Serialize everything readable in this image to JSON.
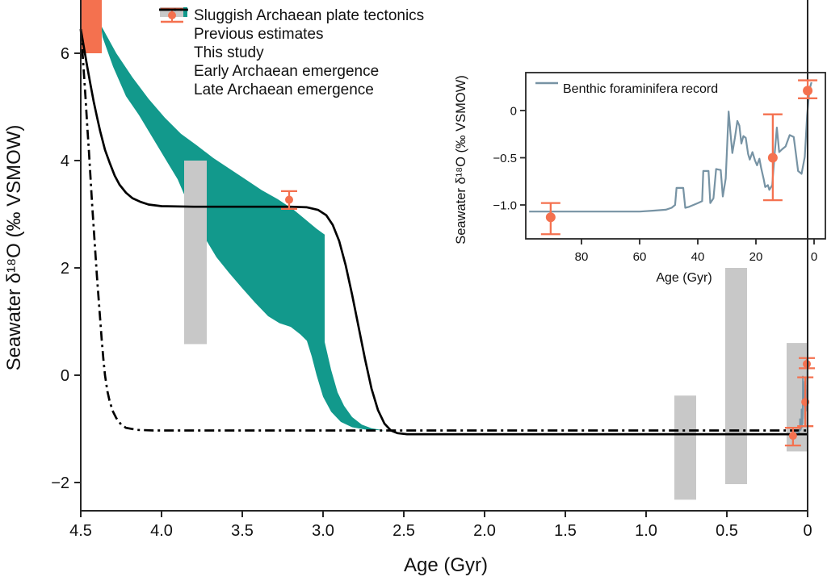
{
  "colors": {
    "teal": "#12998c",
    "orange": "#f4714f",
    "gray": "#c8c8c8",
    "blue_gray": "#7793a4",
    "line_black": "#000000",
    "axis": "#262626"
  },
  "chart_data": [
    {
      "type": "line",
      "title": "",
      "xlabel": "Age (Gyr)",
      "ylabel": "Seawater δ¹⁸O (‰ VSMOW)",
      "xlim": [
        4.5,
        0
      ],
      "ylim": [
        -2.53,
        7.0
      ],
      "grid": false,
      "legend_position": "upper left",
      "x_ticks": {
        "values": [
          4.5,
          4.0,
          3.5,
          3.0,
          2.5,
          2.0,
          1.5,
          1.0,
          0.5,
          0
        ],
        "labels": [
          "4.5",
          "4.0",
          "3.5",
          "3.0",
          "2.5",
          "2.0",
          "1.5",
          "1.0",
          "0.5",
          "0"
        ]
      },
      "y_ticks": {
        "values": [
          6,
          4,
          2,
          0,
          -2
        ],
        "labels": [
          "6",
          "4",
          "2",
          "0",
          "−2"
        ]
      },
      "legend": {
        "items": [
          {
            "label": "Sluggish Archaean plate tectonics",
            "marker": "filled-band"
          },
          {
            "label": "Previous estimates",
            "marker": "filled-box"
          },
          {
            "label": "This study",
            "marker": "errorbar-point"
          },
          {
            "label": "Early Archaean emergence",
            "marker": "dashdot-line"
          },
          {
            "label": "Late Archaean emergence",
            "marker": "solid-line"
          }
        ]
      },
      "orange_box": {
        "age": [
          4.37,
          4.5
        ],
        "d18o": [
          6.0,
          7.0
        ]
      },
      "previous_estimates": [
        {
          "age": [
            3.72,
            3.86
          ],
          "d18o": [
            0.58,
            4.0
          ]
        },
        {
          "age": [
            0.69,
            0.825
          ],
          "d18o": [
            -2.32,
            -0.38
          ]
        },
        {
          "age": [
            0.375,
            0.51
          ],
          "d18o": [
            -2.03,
            2.0
          ]
        },
        {
          "age": [
            0.005,
            0.13
          ],
          "d18o": [
            -1.42,
            0.6
          ]
        }
      ],
      "this_study": [
        {
          "age": 3.21,
          "d18o": 3.27,
          "lo": 3.1,
          "hi": 3.43
        },
        {
          "age": 0.0906,
          "d18o": -1.13,
          "lo": -1.31,
          "hi": -0.98
        },
        {
          "age": 0.0142,
          "d18o": -0.5,
          "lo": -0.95,
          "hi": -0.04
        },
        {
          "age": 0.005,
          "d18o": 0.21,
          "lo": 0.13,
          "hi": 0.32
        }
      ],
      "series": {
        "band_upper": [
          [
            4.375,
            6.52
          ],
          [
            4.28,
            6.0
          ],
          [
            4.18,
            5.55
          ],
          [
            4.08,
            5.15
          ],
          [
            3.98,
            4.8
          ],
          [
            3.88,
            4.5
          ],
          [
            3.78,
            4.28
          ],
          [
            3.68,
            4.05
          ],
          [
            3.58,
            3.85
          ],
          [
            3.48,
            3.65
          ],
          [
            3.38,
            3.45
          ],
          [
            3.28,
            3.28
          ],
          [
            3.18,
            3.08
          ],
          [
            3.1,
            2.88
          ],
          [
            3.04,
            2.73
          ],
          [
            2.99,
            2.62
          ],
          [
            2.99,
            0.62
          ],
          [
            2.95,
            0.1
          ],
          [
            2.91,
            -0.32
          ],
          [
            2.87,
            -0.57
          ],
          [
            2.82,
            -0.78
          ],
          [
            2.76,
            -0.92
          ],
          [
            2.7,
            -0.99
          ],
          [
            2.62,
            -1.03
          ]
        ],
        "band_lower": [
          [
            4.365,
            6.3
          ],
          [
            4.3,
            5.75
          ],
          [
            4.22,
            5.2
          ],
          [
            4.14,
            4.85
          ],
          [
            4.06,
            4.45
          ],
          [
            3.98,
            4.05
          ],
          [
            3.9,
            3.65
          ],
          [
            3.85,
            3.3
          ],
          [
            3.8,
            3.05
          ],
          [
            3.73,
            2.55
          ],
          [
            3.66,
            2.2
          ],
          [
            3.58,
            1.9
          ],
          [
            3.5,
            1.62
          ],
          [
            3.42,
            1.35
          ],
          [
            3.34,
            1.1
          ],
          [
            3.27,
            0.97
          ],
          [
            3.2,
            0.9
          ],
          [
            3.14,
            0.76
          ],
          [
            3.1,
            0.64
          ],
          [
            3.07,
            0.35
          ],
          [
            3.04,
            0.0
          ],
          [
            3.0,
            -0.4
          ],
          [
            2.95,
            -0.68
          ],
          [
            2.89,
            -0.87
          ],
          [
            2.82,
            -0.97
          ],
          [
            2.74,
            -1.01
          ],
          [
            2.62,
            -1.03
          ]
        ],
        "early_emergence": [
          [
            4.5,
            6.45
          ],
          [
            4.49,
            6.05
          ],
          [
            4.48,
            5.6
          ],
          [
            4.47,
            5.15
          ],
          [
            4.46,
            4.65
          ],
          [
            4.45,
            4.2
          ],
          [
            4.44,
            3.7
          ],
          [
            4.43,
            3.2
          ],
          [
            4.42,
            2.75
          ],
          [
            4.41,
            2.3
          ],
          [
            4.4,
            1.85
          ],
          [
            4.39,
            1.45
          ],
          [
            4.38,
            1.05
          ],
          [
            4.37,
            0.65
          ],
          [
            4.36,
            0.3
          ],
          [
            4.35,
            0.0
          ],
          [
            4.335,
            -0.3
          ],
          [
            4.32,
            -0.5
          ],
          [
            4.3,
            -0.68
          ],
          [
            4.28,
            -0.8
          ],
          [
            4.25,
            -0.92
          ],
          [
            4.22,
            -0.98
          ],
          [
            4.15,
            -1.02
          ],
          [
            4.05,
            -1.03
          ],
          [
            3.9,
            -1.03
          ],
          [
            3.5,
            -1.03
          ],
          [
            3.0,
            -1.03
          ],
          [
            2.5,
            -1.03
          ],
          [
            2.0,
            -1.03
          ],
          [
            1.5,
            -1.03
          ],
          [
            1.0,
            -1.03
          ],
          [
            0.5,
            -1.03
          ],
          [
            0.0,
            -1.03
          ]
        ],
        "late_emergence": [
          [
            4.5,
            6.45
          ],
          [
            4.48,
            6.1
          ],
          [
            4.46,
            5.75
          ],
          [
            4.44,
            5.42
          ],
          [
            4.42,
            5.1
          ],
          [
            4.4,
            4.82
          ],
          [
            4.38,
            4.55
          ],
          [
            4.35,
            4.2
          ],
          [
            4.32,
            3.95
          ],
          [
            4.29,
            3.72
          ],
          [
            4.26,
            3.55
          ],
          [
            4.22,
            3.4
          ],
          [
            4.18,
            3.3
          ],
          [
            4.13,
            3.23
          ],
          [
            4.08,
            3.18
          ],
          [
            4.0,
            3.15
          ],
          [
            3.8,
            3.14
          ],
          [
            3.6,
            3.14
          ],
          [
            3.4,
            3.14
          ],
          [
            3.2,
            3.14
          ],
          [
            3.1,
            3.13
          ],
          [
            3.03,
            3.08
          ],
          [
            2.98,
            2.98
          ],
          [
            2.94,
            2.8
          ],
          [
            2.9,
            2.5
          ],
          [
            2.86,
            2.05
          ],
          [
            2.82,
            1.5
          ],
          [
            2.78,
            0.9
          ],
          [
            2.74,
            0.3
          ],
          [
            2.7,
            -0.25
          ],
          [
            2.66,
            -0.65
          ],
          [
            2.62,
            -0.9
          ],
          [
            2.58,
            -1.03
          ],
          [
            2.54,
            -1.08
          ],
          [
            2.48,
            -1.1
          ],
          [
            2.3,
            -1.1
          ],
          [
            2.0,
            -1.1
          ],
          [
            1.5,
            -1.1
          ],
          [
            1.0,
            -1.1
          ],
          [
            0.5,
            -1.1
          ],
          [
            0.0,
            -1.1
          ]
        ]
      }
    },
    {
      "type": "line",
      "legend_label": "Benthic foraminifera record",
      "xlabel": "Age (Gyr)",
      "ylabel": "Seawater δ¹⁸O (‰ VSMOW)",
      "xlim": [
        98,
        -4
      ],
      "ylim": [
        -1.39,
        0.4
      ],
      "grid": false,
      "legend_position": "upper left",
      "x_ticks": {
        "values": [
          80,
          60,
          40,
          20,
          0
        ],
        "labels": [
          "80",
          "60",
          "40",
          "20",
          "0"
        ]
      },
      "y_ticks": {
        "values": [
          0,
          -0.5,
          -1.0
        ],
        "labels": [
          "0",
          "−0.5",
          "−1.0"
        ]
      },
      "line": [
        [
          98,
          -1.07
        ],
        [
          85,
          -1.07
        ],
        [
          70,
          -1.07
        ],
        [
          60,
          -1.07
        ],
        [
          55,
          -1.06
        ],
        [
          51,
          -1.05
        ],
        [
          49,
          -1.03
        ],
        [
          47.8,
          -1.0
        ],
        [
          47.3,
          -0.82
        ],
        [
          45,
          -0.82
        ],
        [
          44.3,
          -1.03
        ],
        [
          43,
          -1.02
        ],
        [
          41.5,
          -1.0
        ],
        [
          40,
          -0.98
        ],
        [
          38.5,
          -0.96
        ],
        [
          38.1,
          -0.64
        ],
        [
          36.3,
          -0.64
        ],
        [
          35.7,
          -0.98
        ],
        [
          34.6,
          -0.93
        ],
        [
          33.7,
          -0.62
        ],
        [
          32.1,
          -0.63
        ],
        [
          31.4,
          -0.91
        ],
        [
          30.4,
          -0.72
        ],
        [
          29.4,
          -0.01
        ],
        [
          28.7,
          -0.26
        ],
        [
          28.1,
          -0.45
        ],
        [
          27.2,
          -0.28
        ],
        [
          26.4,
          -0.11
        ],
        [
          25.7,
          -0.16
        ],
        [
          25.0,
          -0.35
        ],
        [
          24.3,
          -0.27
        ],
        [
          23.5,
          -0.29
        ],
        [
          22.7,
          -0.46
        ],
        [
          22.1,
          -0.52
        ],
        [
          21.2,
          -0.44
        ],
        [
          20.3,
          -0.53
        ],
        [
          19.6,
          -0.58
        ],
        [
          18.8,
          -0.51
        ],
        [
          18.2,
          -0.61
        ],
        [
          17.3,
          -0.73
        ],
        [
          16.8,
          -0.81
        ],
        [
          15.9,
          -0.79
        ],
        [
          15.4,
          -0.84
        ],
        [
          14.4,
          -0.79
        ],
        [
          13.7,
          -0.51
        ],
        [
          12.8,
          -0.18
        ],
        [
          12.0,
          -0.44
        ],
        [
          11.0,
          -0.41
        ],
        [
          9.8,
          -0.38
        ],
        [
          8.4,
          -0.26
        ],
        [
          7.0,
          -0.28
        ],
        [
          6.2,
          -0.47
        ],
        [
          5.5,
          -0.64
        ],
        [
          4.3,
          -0.67
        ],
        [
          3.2,
          -0.49
        ],
        [
          2.4,
          -0.05
        ],
        [
          1.6,
          0.22
        ],
        [
          0.9,
          0.3
        ]
      ],
      "points": [
        {
          "age": 90.6,
          "d18o": -1.13,
          "lo": -1.31,
          "hi": -0.98
        },
        {
          "age": 14.2,
          "d18o": -0.5,
          "lo": -0.95,
          "hi": -0.04
        },
        {
          "age": 2.2,
          "d18o": 0.21,
          "lo": 0.13,
          "hi": 0.32
        }
      ]
    }
  ]
}
